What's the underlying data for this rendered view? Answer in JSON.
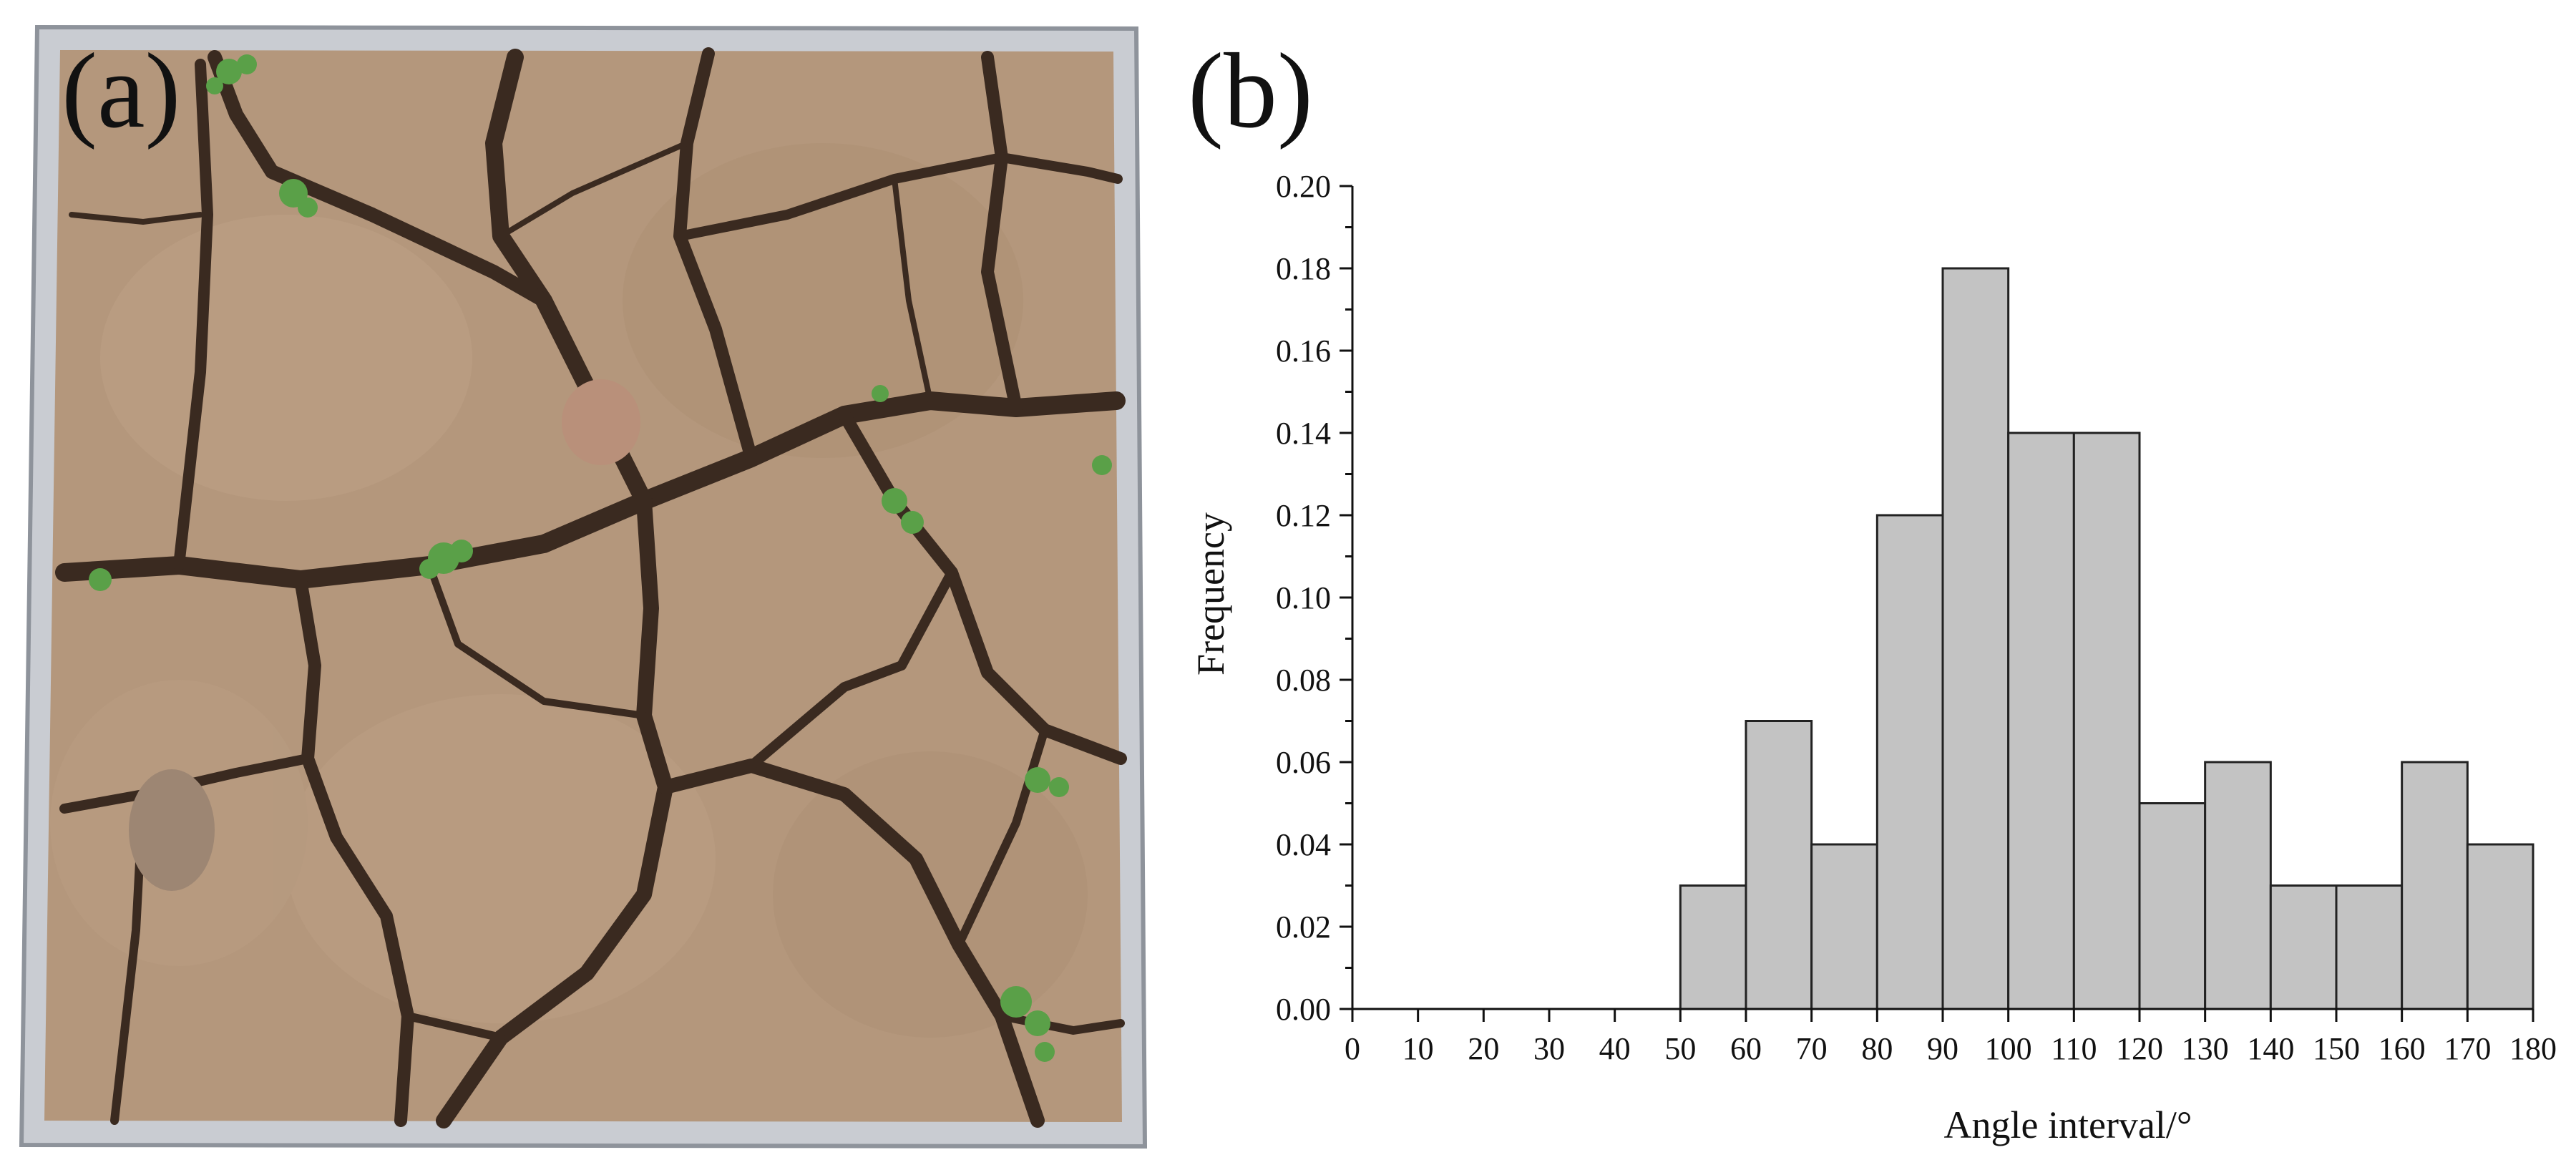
{
  "panels": {
    "a_label": "(a)",
    "b_label": "(b)"
  },
  "photo": {
    "frame_color": "#c9ccd2",
    "soil_color": "#b4977c",
    "crack_color": "#3a2a20",
    "plant_color": "#5aa048"
  },
  "colors": {
    "bar_fill": "#c3c3c3",
    "bar_stroke": "#222222",
    "axis": "#111111"
  },
  "chart_data": {
    "type": "bar",
    "xlabel": "Angle interval/°",
    "ylabel": "Frequency",
    "x_ticks": [
      "0",
      "10",
      "20",
      "30",
      "40",
      "50",
      "60",
      "70",
      "80",
      "90",
      "100",
      "110",
      "120",
      "130",
      "140",
      "150",
      "160",
      "170",
      "180"
    ],
    "y_ticks": [
      "0.00",
      "0.02",
      "0.04",
      "0.06",
      "0.08",
      "0.10",
      "0.12",
      "0.14",
      "0.16",
      "0.18",
      "0.20"
    ],
    "xlim": [
      0,
      180
    ],
    "ylim": [
      0,
      0.2
    ],
    "bin_width": 10,
    "bins": [
      {
        "start": 0,
        "value": 0
      },
      {
        "start": 10,
        "value": 0
      },
      {
        "start": 20,
        "value": 0
      },
      {
        "start": 30,
        "value": 0
      },
      {
        "start": 40,
        "value": 0
      },
      {
        "start": 50,
        "value": 0.03
      },
      {
        "start": 60,
        "value": 0.07
      },
      {
        "start": 70,
        "value": 0.04
      },
      {
        "start": 80,
        "value": 0.12
      },
      {
        "start": 90,
        "value": 0.18
      },
      {
        "start": 100,
        "value": 0.14
      },
      {
        "start": 110,
        "value": 0.14
      },
      {
        "start": 120,
        "value": 0.05
      },
      {
        "start": 130,
        "value": 0.06
      },
      {
        "start": 140,
        "value": 0.03
      },
      {
        "start": 150,
        "value": 0.03
      },
      {
        "start": 160,
        "value": 0.06
      },
      {
        "start": 170,
        "value": 0.04
      }
    ],
    "grid": false,
    "legend": "none"
  }
}
